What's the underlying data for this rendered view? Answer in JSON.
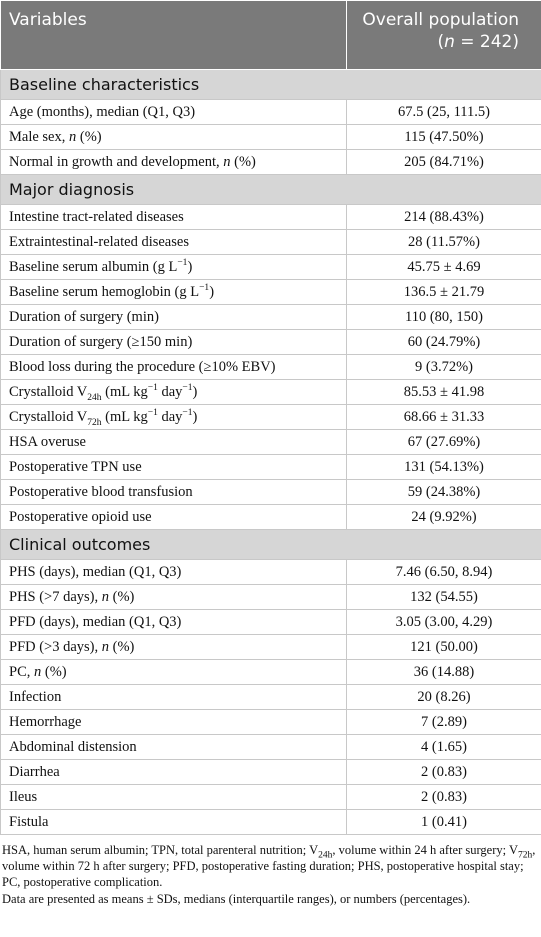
{
  "header": {
    "col1": [
      "Variables"
    ],
    "col2": [
      "Overall population"
    ],
    "col2b": [
      "(",
      {
        "t": "n",
        "f": "i"
      },
      " = 242)"
    ]
  },
  "sections": [
    {
      "title": [
        "Baseline characteristics"
      ],
      "rows": [
        [
          [
            "Age (months), median (Q1, Q3)"
          ],
          "67.5 (25, 111.5)"
        ],
        [
          [
            "Male sex, ",
            {
              "t": "n",
              "f": "i"
            },
            " (%)"
          ],
          "115 (47.50%)"
        ],
        [
          [
            "Normal in growth and development, ",
            {
              "t": "n",
              "f": "i"
            },
            " (%)"
          ],
          "205 (84.71%)"
        ]
      ]
    },
    {
      "title": [
        "Major diagnosis"
      ],
      "rows": [
        [
          [
            "Intestine tract-related diseases"
          ],
          "214 (88.43%)"
        ],
        [
          [
            "Extraintestinal-related diseases"
          ],
          "28 (11.57%)"
        ],
        [
          [
            "Baseline serum albumin (g L",
            {
              "t": "−1",
              "f": "sup"
            },
            ")"
          ],
          "45.75 ± 4.69"
        ],
        [
          [
            "Baseline serum hemoglobin (g L",
            {
              "t": "−1",
              "f": "sup"
            },
            ")"
          ],
          "136.5 ± 21.79"
        ],
        [
          [
            "Duration of surgery (min)"
          ],
          "110 (80, 150)"
        ],
        [
          [
            "Duration of surgery (≥150 min)"
          ],
          "60 (24.79%)"
        ],
        [
          [
            "Blood loss during the procedure (≥10% EBV)"
          ],
          "9 (3.72%)"
        ],
        [
          [
            "Crystalloid V",
            {
              "t": "24h",
              "f": "sub"
            },
            " (mL kg",
            {
              "t": "−1",
              "f": "sup"
            },
            " day",
            {
              "t": "−1",
              "f": "sup"
            },
            ")"
          ],
          "85.53 ± 41.98"
        ],
        [
          [
            "Crystalloid V",
            {
              "t": "72h",
              "f": "sub"
            },
            " (mL kg",
            {
              "t": "−1",
              "f": "sup"
            },
            " day",
            {
              "t": "−1",
              "f": "sup"
            },
            ")"
          ],
          "68.66 ± 31.33"
        ],
        [
          [
            "HSA overuse"
          ],
          "67 (27.69%)"
        ],
        [
          [
            "Postoperative TPN use"
          ],
          "131 (54.13%)"
        ],
        [
          [
            "Postoperative blood transfusion"
          ],
          "59 (24.38%)"
        ],
        [
          [
            "Postoperative opioid use"
          ],
          "24 (9.92%)"
        ]
      ]
    },
    {
      "title": [
        "Clinical outcomes"
      ],
      "rows": [
        [
          [
            "PHS (days), median (Q1, Q3)"
          ],
          "7.46 (6.50, 8.94)"
        ],
        [
          [
            "PHS (>7 days), ",
            {
              "t": "n",
              "f": "i"
            },
            " (%)"
          ],
          "132 (54.55)"
        ],
        [
          [
            "PFD (days), median (Q1, Q3)"
          ],
          "3.05 (3.00, 4.29)"
        ],
        [
          [
            "PFD (>3 days), ",
            {
              "t": "n",
              "f": "i"
            },
            " (%)"
          ],
          "121 (50.00)"
        ],
        [
          [
            "PC, ",
            {
              "t": "n",
              "f": "i"
            },
            " (%)"
          ],
          "36 (14.88)"
        ],
        [
          [
            "Infection"
          ],
          "20 (8.26)"
        ],
        [
          [
            "Hemorrhage"
          ],
          "7 (2.89)"
        ],
        [
          [
            "Abdominal distension"
          ],
          "4 (1.65)"
        ],
        [
          [
            "Diarrhea"
          ],
          "2 (0.83)"
        ],
        [
          [
            "Ileus"
          ],
          "2 (0.83)"
        ],
        [
          [
            "Fistula"
          ],
          "1 (0.41)"
        ]
      ]
    }
  ],
  "footnotes": [
    [
      "HSA, human serum albumin; TPN, total parenteral nutrition; V",
      {
        "t": "24h",
        "f": "sub"
      },
      ", volume within 24 h after surgery; V",
      {
        "t": "72h",
        "f": "sub"
      },
      ", volume within 72 h after surgery; PFD, postoperative fasting duration; PHS, postoperative hospital stay; PC, postoperative complication."
    ],
    [
      "Data are presented as means ± SDs, medians (interquartile ranges), or numbers (percentages)."
    ]
  ]
}
